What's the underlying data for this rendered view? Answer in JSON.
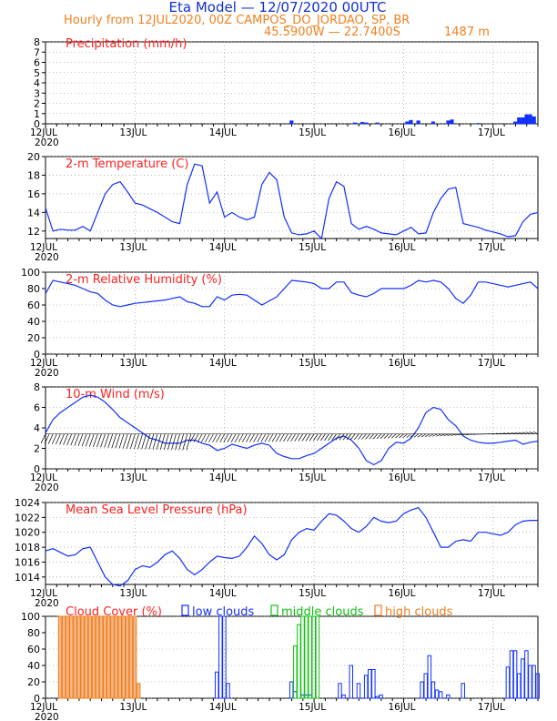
{
  "header": {
    "title": "Eta Model — 12/07/2020 00UTC",
    "subtitle": "Hourly from 12JUL2020, 00Z  CAMPOS_DO_JORDAO, SP, BR",
    "location": "45.5900W — 22.7400S",
    "elevation": "1487  m"
  },
  "colors": {
    "title": "#1030d0",
    "header": "#f08020",
    "panel_title": "#ff2020",
    "line": "#1030ff",
    "low": "#1030ff",
    "middle": "#10c010",
    "high": "#f08020",
    "high_fill": "#f5b888",
    "grid": "#888888",
    "wind_barb": "#000000"
  },
  "xaxis": {
    "days": [
      "12JUL",
      "13JUL",
      "14JUL",
      "15JUL",
      "16JUL",
      "17JUL"
    ],
    "year": "2020",
    "hours_total": 132
  },
  "chart_data": [
    {
      "type": "bar",
      "title": "Precipitation (mm/h)",
      "ylim": [
        0,
        8
      ],
      "yticks": [
        "0",
        "1",
        "2",
        "3",
        "4",
        "5",
        "6",
        "7",
        "8"
      ],
      "x_hours": [
        66,
        83,
        85,
        86,
        89,
        97,
        98,
        100,
        104,
        108,
        109,
        116,
        126,
        127,
        128,
        129,
        130,
        131
      ],
      "values": [
        0.3,
        0.1,
        0.15,
        0.1,
        0.1,
        0.2,
        0.35,
        0.3,
        0.2,
        0.3,
        0.4,
        0.05,
        0.2,
        0.6,
        0.6,
        0.9,
        0.9,
        0.7
      ]
    },
    {
      "type": "line",
      "title": "2-m Temperature (C)",
      "ylim": [
        11.2,
        20
      ],
      "yticks": [
        "12",
        "14",
        "16",
        "18",
        "20"
      ],
      "x_hours": [
        0,
        2,
        4,
        6,
        8,
        10,
        12,
        14,
        16,
        18,
        20,
        22,
        24,
        26,
        28,
        30,
        32,
        34,
        36,
        38,
        40,
        42,
        44,
        46,
        48,
        50,
        52,
        54,
        56,
        58,
        60,
        62,
        64,
        66,
        68,
        70,
        72,
        74,
        76,
        78,
        80,
        82,
        84,
        86,
        88,
        90,
        92,
        94,
        96,
        98,
        100,
        102,
        104,
        106,
        108,
        110,
        112,
        114,
        116,
        118,
        120,
        122,
        124,
        126,
        128,
        130,
        132
      ],
      "values": [
        14.5,
        12.0,
        12.2,
        12.1,
        12.1,
        12.5,
        12.0,
        14.0,
        16.0,
        17.0,
        17.3,
        16.2,
        15.0,
        14.8,
        14.4,
        14.0,
        13.5,
        13.0,
        12.8,
        17.0,
        19.2,
        19.0,
        15.0,
        16.2,
        13.5,
        14.0,
        13.5,
        13.2,
        13.5,
        17.0,
        18.3,
        17.5,
        13.5,
        11.8,
        11.6,
        11.7,
        12.0,
        11.2,
        15.5,
        17.3,
        16.8,
        12.8,
        12.2,
        12.5,
        12.2,
        11.8,
        11.7,
        11.6,
        12.0,
        12.4,
        11.7,
        11.8,
        14.0,
        15.5,
        16.5,
        16.7,
        12.8,
        12.6,
        12.4,
        12.1,
        11.9,
        11.7,
        11.4,
        11.5,
        13.0,
        13.8,
        14.0
      ],
      "series_name": "temperature"
    },
    {
      "type": "line",
      "title": "2-m Relative Humidity (%)",
      "ylim": [
        0,
        100
      ],
      "yticks": [
        "0",
        "20",
        "40",
        "60",
        "80",
        "100"
      ],
      "x_hours": [
        0,
        2,
        4,
        6,
        8,
        10,
        12,
        14,
        16,
        18,
        20,
        22,
        24,
        26,
        28,
        30,
        32,
        34,
        36,
        38,
        40,
        42,
        44,
        46,
        48,
        50,
        52,
        54,
        56,
        58,
        60,
        62,
        64,
        66,
        68,
        70,
        72,
        74,
        76,
        78,
        80,
        82,
        84,
        86,
        88,
        90,
        92,
        94,
        96,
        98,
        100,
        102,
        104,
        106,
        108,
        110,
        112,
        114,
        116,
        118,
        120,
        122,
        124,
        126,
        128,
        130,
        132
      ],
      "values": [
        74,
        90,
        88,
        86,
        84,
        80,
        76,
        74,
        66,
        60,
        58,
        60,
        62,
        63,
        64,
        65,
        66,
        68,
        70,
        64,
        62,
        58,
        58,
        70,
        66,
        72,
        73,
        72,
        66,
        60,
        65,
        70,
        80,
        90,
        89,
        88,
        86,
        80,
        80,
        88,
        88,
        75,
        72,
        70,
        74,
        80,
        80,
        80,
        80,
        84,
        90,
        88,
        90,
        88,
        80,
        68,
        62,
        72,
        88,
        88,
        86,
        84,
        82,
        84,
        86,
        88,
        80
      ],
      "series_name": "relative humidity"
    },
    {
      "type": "line",
      "title": "10-m Wind (m/s)",
      "ylim": [
        0,
        8
      ],
      "yticks": [
        "0",
        "2",
        "4",
        "6",
        "8"
      ],
      "x_hours": [
        0,
        2,
        4,
        6,
        8,
        10,
        12,
        14,
        16,
        18,
        20,
        22,
        24,
        26,
        28,
        30,
        32,
        34,
        36,
        38,
        40,
        42,
        44,
        46,
        48,
        50,
        52,
        54,
        56,
        58,
        60,
        62,
        64,
        66,
        68,
        70,
        72,
        74,
        76,
        78,
        80,
        82,
        84,
        86,
        88,
        90,
        92,
        94,
        96,
        98,
        100,
        102,
        104,
        106,
        108,
        110,
        112,
        114,
        116,
        118,
        120,
        122,
        124,
        126,
        128,
        130,
        132
      ],
      "values": [
        3.5,
        4.8,
        5.5,
        6.0,
        6.5,
        7.0,
        7.2,
        7.0,
        6.5,
        5.8,
        5.0,
        4.5,
        4.0,
        3.5,
        3.0,
        2.8,
        2.5,
        2.5,
        2.5,
        2.8,
        2.8,
        2.5,
        2.3,
        1.8,
        2.0,
        2.4,
        2.2,
        2.0,
        2.3,
        2.5,
        2.3,
        1.5,
        1.2,
        1.0,
        1.0,
        1.3,
        1.5,
        2.0,
        2.5,
        3.0,
        3.2,
        2.8,
        2.0,
        0.8,
        0.4,
        0.8,
        2.0,
        2.6,
        2.5,
        3.0,
        4.0,
        5.5,
        6.0,
        5.8,
        4.8,
        4.2,
        3.2,
        2.8,
        2.6,
        2.5,
        2.5,
        2.6,
        2.7,
        2.8,
        2.4,
        2.6,
        2.7
      ],
      "series_name": "wind speed"
    },
    {
      "type": "line",
      "title": "Mean Sea Level Pressure (hPa)",
      "ylim": [
        1013,
        1024
      ],
      "yticks": [
        "1014",
        "1016",
        "1018",
        "1020",
        "1022",
        "1024"
      ],
      "x_hours": [
        0,
        2,
        4,
        6,
        8,
        10,
        12,
        14,
        16,
        18,
        20,
        22,
        24,
        26,
        28,
        30,
        32,
        34,
        36,
        38,
        40,
        42,
        44,
        46,
        48,
        50,
        52,
        54,
        56,
        58,
        60,
        62,
        64,
        66,
        68,
        70,
        72,
        74,
        76,
        78,
        80,
        82,
        84,
        86,
        88,
        90,
        92,
        94,
        96,
        98,
        100,
        102,
        104,
        106,
        108,
        110,
        112,
        114,
        116,
        118,
        120,
        122,
        124,
        126,
        128,
        130,
        132
      ],
      "values": [
        1017.5,
        1017.8,
        1017.3,
        1016.8,
        1017.0,
        1017.8,
        1018.0,
        1016.0,
        1014.0,
        1013.0,
        1012.8,
        1013.5,
        1015.0,
        1015.5,
        1015.3,
        1016.0,
        1017.0,
        1017.5,
        1016.5,
        1015.0,
        1014.3,
        1015.0,
        1016.0,
        1016.8,
        1016.6,
        1016.5,
        1016.8,
        1018.0,
        1019.5,
        1018.5,
        1017.0,
        1016.3,
        1017.0,
        1019.0,
        1020.0,
        1020.5,
        1020.3,
        1021.5,
        1022.5,
        1022.3,
        1021.5,
        1020.5,
        1020.0,
        1020.8,
        1022.0,
        1021.5,
        1021.3,
        1021.5,
        1022.5,
        1023.0,
        1023.3,
        1022.0,
        1020.0,
        1018.0,
        1018.0,
        1018.8,
        1019.0,
        1018.8,
        1020.0,
        1020.0,
        1019.8,
        1019.6,
        1020.0,
        1021.0,
        1021.5,
        1021.6,
        1021.6
      ],
      "series_name": "MSL pressure"
    },
    {
      "type": "bar",
      "title": "Cloud Cover (%)",
      "ylim": [
        0,
        100
      ],
      "yticks": [
        "0",
        "20",
        "40",
        "60",
        "80",
        "100"
      ],
      "legend": [
        "low clouds",
        "middle clouds",
        "high clouds"
      ],
      "series": [
        {
          "name": "high clouds",
          "x_hours": [
            4,
            5,
            6,
            7,
            8,
            9,
            10,
            11,
            12,
            13,
            14,
            15,
            16,
            17,
            18,
            19,
            20,
            21,
            22,
            23,
            24,
            25
          ],
          "values": [
            100,
            100,
            100,
            100,
            100,
            100,
            100,
            100,
            100,
            100,
            100,
            100,
            100,
            100,
            100,
            100,
            100,
            100,
            100,
            100,
            100,
            18
          ]
        },
        {
          "name": "low clouds",
          "x_hours": [
            46,
            47,
            48,
            49,
            66,
            67,
            69,
            70,
            71,
            79,
            80,
            82,
            84,
            86,
            87,
            88,
            89,
            90,
            101,
            102,
            103,
            104,
            105,
            106,
            108,
            112,
            124,
            125,
            126,
            127,
            128,
            129,
            130,
            131,
            132
          ],
          "values": [
            32,
            100,
            100,
            18,
            20,
            8,
            4,
            4,
            4,
            18,
            4,
            40,
            18,
            28,
            35,
            35,
            2,
            4,
            20,
            30,
            52,
            20,
            10,
            8,
            4,
            18,
            38,
            58,
            58,
            30,
            48,
            58,
            40,
            40,
            30
          ]
        },
        {
          "name": "middle clouds",
          "x_hours": [
            67,
            68,
            69,
            70,
            71,
            72,
            73
          ],
          "values": [
            64,
            90,
            100,
            100,
            100,
            100,
            100
          ]
        }
      ]
    }
  ]
}
